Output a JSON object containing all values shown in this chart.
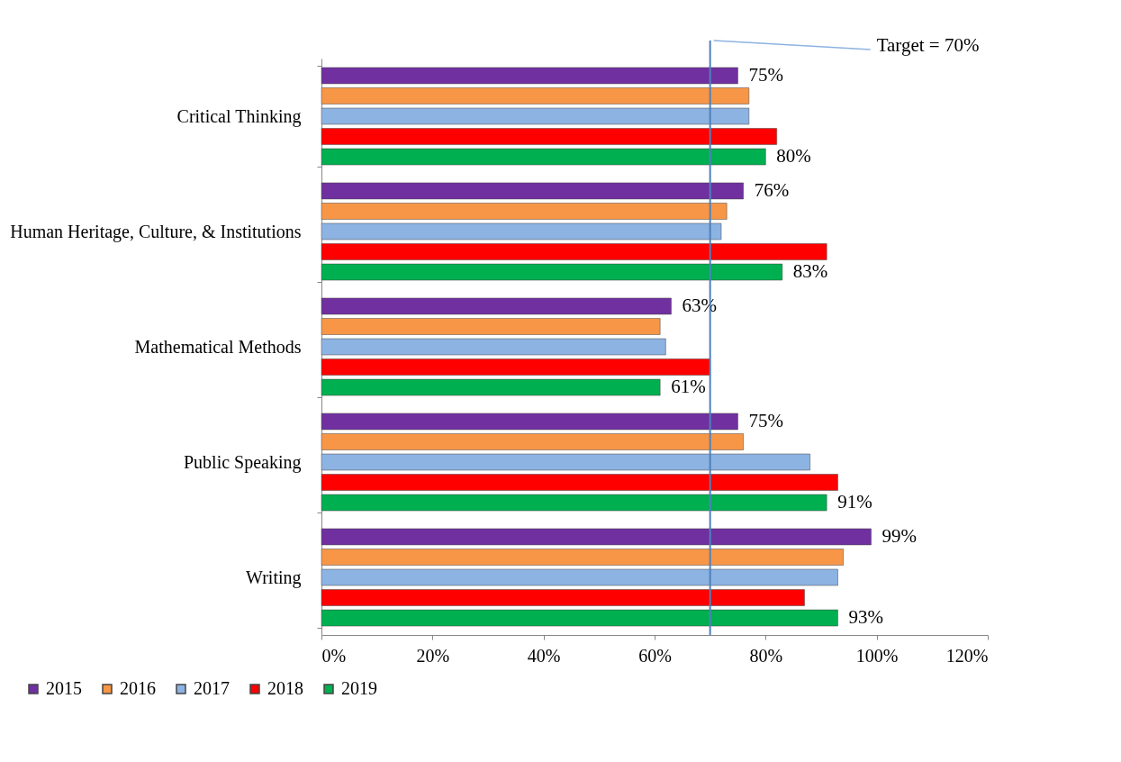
{
  "chart_data": {
    "type": "bar",
    "orientation": "horizontal",
    "categories": [
      "Critical Thinking",
      "Human Heritage, Culture, & Institutions",
      "Mathematical Methods",
      "Public Speaking",
      "Writing"
    ],
    "series": [
      {
        "name": "2015",
        "color": "#7030a0",
        "values": [
          75,
          76,
          63,
          75,
          99
        ],
        "value_labels": [
          "75%",
          "76%",
          "63%",
          "75%",
          "99%"
        ]
      },
      {
        "name": "2016",
        "color": "#f79646",
        "values": [
          77,
          73,
          61,
          76,
          94
        ]
      },
      {
        "name": "2017",
        "color": "#8db3e2",
        "values": [
          77,
          72,
          62,
          88,
          93
        ]
      },
      {
        "name": "2018",
        "color": "#ff0000",
        "values": [
          82,
          91,
          70,
          93,
          87
        ]
      },
      {
        "name": "2019",
        "color": "#00b050",
        "values": [
          80,
          83,
          61,
          91,
          93
        ],
        "value_labels": [
          "80%",
          "83%",
          "61%",
          "91%",
          "93%"
        ]
      }
    ],
    "xlim": [
      0,
      120
    ],
    "xticks": [
      {
        "value": 0,
        "label": "0%"
      },
      {
        "value": 20,
        "label": "20%"
      },
      {
        "value": 40,
        "label": "40%"
      },
      {
        "value": 60,
        "label": "60%"
      },
      {
        "value": 80,
        "label": "80%"
      },
      {
        "value": 100,
        "label": "100%"
      },
      {
        "value": 120,
        "label": "120%"
      }
    ],
    "ref_lines": [
      {
        "axis": "x",
        "value": 70,
        "label": "Target = 70%",
        "color": "#4f81bd"
      }
    ],
    "grid": false,
    "legend": "bottom left"
  }
}
